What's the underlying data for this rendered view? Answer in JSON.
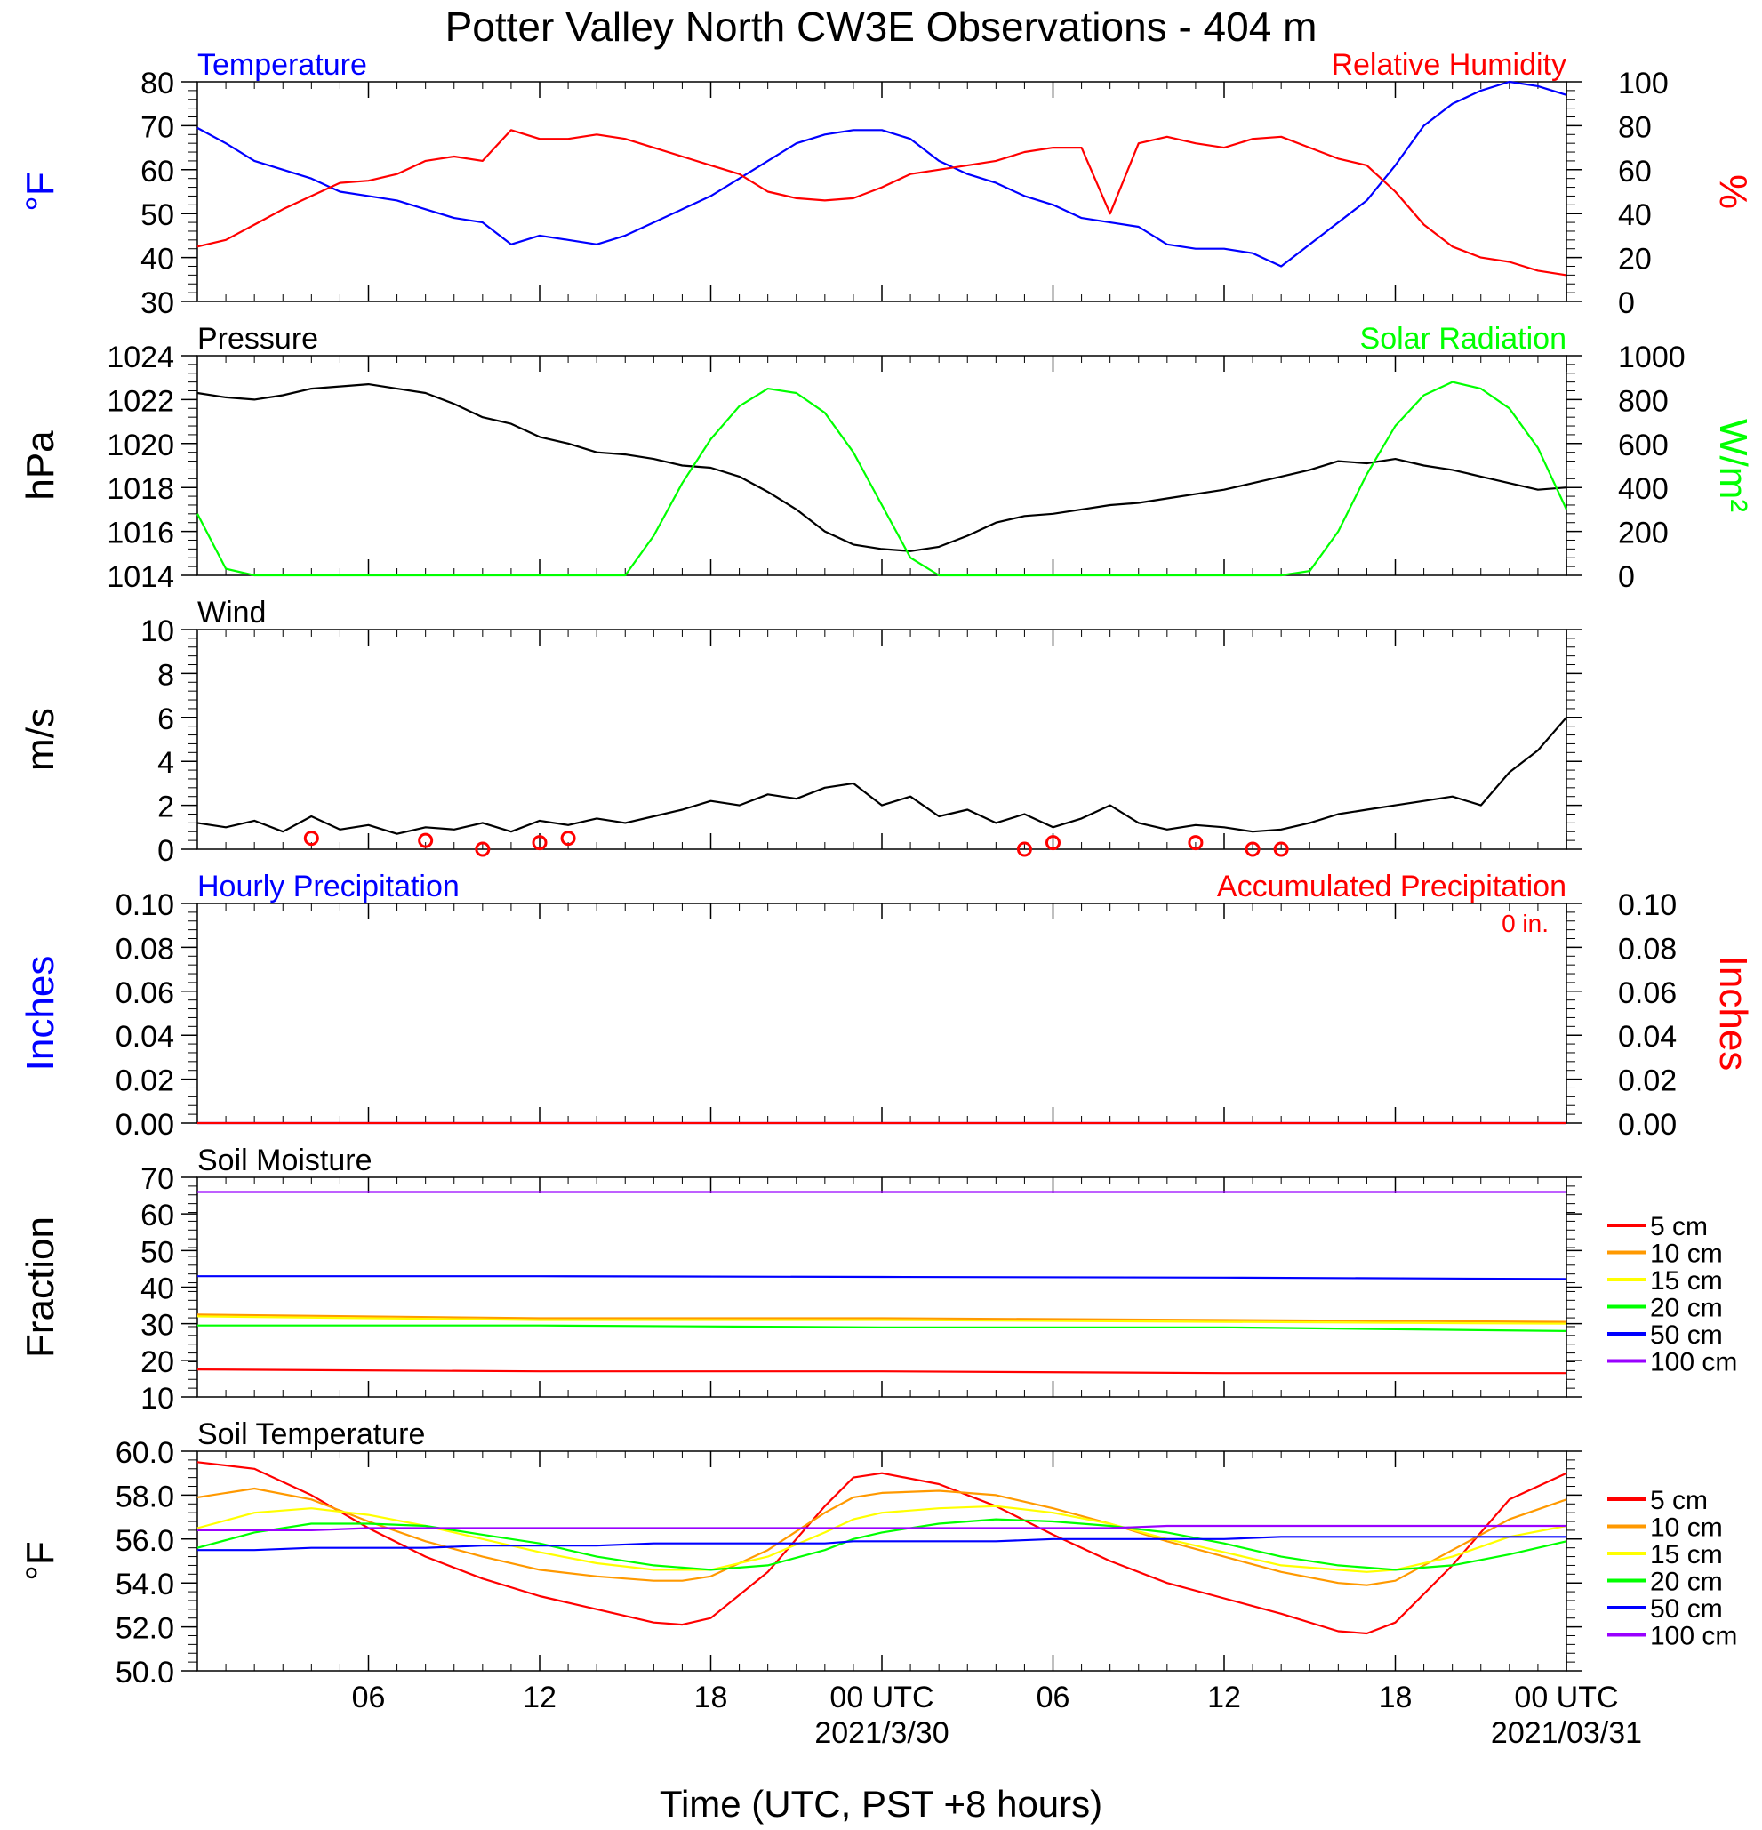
{
  "title": "Potter Valley North CW3E Observations - 404 m",
  "xlabel": "Time (UTC, PST +8 hours)",
  "x_ticks": [
    "06",
    "12",
    "18",
    "00 UTC",
    "06",
    "12",
    "18",
    "00 UTC"
  ],
  "x_dates": [
    "2021/3/30",
    "2021/03/31"
  ],
  "colors": {
    "blue": "#0000ff",
    "red": "#ff0000",
    "green": "#00ff00",
    "orange": "#ff9900",
    "yellow": "#ffff00",
    "purple": "#9900ff",
    "black": "#000000"
  },
  "chart_data": [
    {
      "type": "line",
      "panel": "temperature_rh",
      "left_title": "Temperature",
      "right_title": "Relative Humidity",
      "ylabel_left": "°F",
      "ylabel_right": "%",
      "ylim_left": [
        30,
        80
      ],
      "ylim_right": [
        0,
        100
      ],
      "yticks_left": [
        "30",
        "40",
        "50",
        "60",
        "70",
        "80"
      ],
      "yticks_right": [
        "0",
        "20",
        "40",
        "60",
        "80",
        "100"
      ],
      "x_hours": [
        0,
        1,
        2,
        3,
        4,
        5,
        6,
        7,
        8,
        9,
        10,
        11,
        12,
        13,
        14,
        15,
        16,
        17,
        18,
        19,
        20,
        21,
        22,
        23,
        24,
        25,
        26,
        27,
        28,
        29,
        30,
        31,
        32,
        33,
        34,
        35,
        36,
        37,
        38,
        39,
        40,
        41,
        42,
        43,
        44,
        45,
        46,
        47,
        48
      ],
      "series": [
        {
          "name": "Temperature",
          "axis": "left",
          "color": "blue",
          "values": [
            69.5,
            66,
            62,
            60,
            58,
            55,
            54,
            53,
            51,
            49,
            48,
            43,
            45,
            44,
            43,
            45,
            48,
            51,
            54,
            58,
            62,
            66,
            68,
            69,
            69,
            67,
            62,
            59,
            57,
            54,
            52,
            49,
            48,
            47,
            43,
            42,
            42,
            41,
            38,
            43,
            48,
            53,
            61,
            70,
            75,
            78,
            80,
            79,
            77
          ]
        },
        {
          "name": "Relative Humidity",
          "axis": "right",
          "color": "red",
          "values": [
            25,
            28,
            35,
            42,
            48,
            54,
            55,
            58,
            64,
            66,
            64,
            78,
            74,
            74,
            76,
            74,
            70,
            66,
            62,
            58,
            50,
            47,
            46,
            47,
            52,
            58,
            60,
            62,
            64,
            68,
            70,
            70,
            40,
            72,
            75,
            72,
            70,
            74,
            75,
            70,
            65,
            62,
            50,
            35,
            25,
            20,
            18,
            14,
            12
          ]
        }
      ]
    },
    {
      "type": "line",
      "panel": "pressure_solar",
      "left_title": "Pressure",
      "right_title": "Solar Radiation",
      "ylabel_left": "hPa",
      "ylabel_right": "W/m²",
      "ylim_left": [
        1014,
        1024
      ],
      "ylim_right": [
        0,
        1000
      ],
      "yticks_left": [
        "1014",
        "1016",
        "1018",
        "1020",
        "1022",
        "1024"
      ],
      "yticks_right": [
        "0",
        "200",
        "400",
        "600",
        "800",
        "1000"
      ],
      "x_hours": [
        0,
        1,
        2,
        3,
        4,
        5,
        6,
        7,
        8,
        9,
        10,
        11,
        12,
        13,
        14,
        15,
        16,
        17,
        18,
        19,
        20,
        21,
        22,
        23,
        24,
        25,
        26,
        27,
        28,
        29,
        30,
        31,
        32,
        33,
        34,
        35,
        36,
        37,
        38,
        39,
        40,
        41,
        42,
        43,
        44,
        45,
        46,
        47,
        48
      ],
      "series": [
        {
          "name": "Pressure",
          "axis": "left",
          "color": "black",
          "values": [
            1022.3,
            1022.1,
            1022.0,
            1022.2,
            1022.5,
            1022.6,
            1022.7,
            1022.5,
            1022.3,
            1021.8,
            1021.2,
            1020.9,
            1020.3,
            1020.0,
            1019.6,
            1019.5,
            1019.3,
            1019.0,
            1018.9,
            1018.5,
            1017.8,
            1017.0,
            1016.0,
            1015.4,
            1015.2,
            1015.1,
            1015.3,
            1015.8,
            1016.4,
            1016.7,
            1016.8,
            1017.0,
            1017.2,
            1017.3,
            1017.5,
            1017.7,
            1017.9,
            1018.2,
            1018.5,
            1018.8,
            1019.2,
            1019.1,
            1019.3,
            1019.0,
            1018.8,
            1018.5,
            1018.2,
            1017.9,
            1018.0
          ]
        },
        {
          "name": "Solar Radiation",
          "axis": "right",
          "color": "green",
          "values": [
            280,
            30,
            0,
            0,
            0,
            0,
            0,
            0,
            0,
            0,
            0,
            0,
            0,
            0,
            0,
            0,
            180,
            420,
            620,
            770,
            850,
            830,
            740,
            560,
            320,
            80,
            0,
            0,
            0,
            0,
            0,
            0,
            0,
            0,
            0,
            0,
            0,
            0,
            0,
            20,
            200,
            460,
            680,
            820,
            880,
            850,
            760,
            580,
            300
          ]
        }
      ]
    },
    {
      "type": "line",
      "panel": "wind",
      "left_title": "Wind",
      "ylabel_left": "m/s",
      "ylim_left": [
        0,
        10
      ],
      "yticks_left": [
        "0",
        "2",
        "4",
        "6",
        "8",
        "10"
      ],
      "x_hours": [
        0,
        1,
        2,
        3,
        4,
        5,
        6,
        7,
        8,
        9,
        10,
        11,
        12,
        13,
        14,
        15,
        16,
        17,
        18,
        19,
        20,
        21,
        22,
        23,
        24,
        25,
        26,
        27,
        28,
        29,
        30,
        31,
        32,
        33,
        34,
        35,
        36,
        37,
        38,
        39,
        40,
        41,
        42,
        43,
        44,
        45,
        46,
        47,
        48
      ],
      "series": [
        {
          "name": "Wind",
          "color": "black",
          "values": [
            1.2,
            1.0,
            1.3,
            0.8,
            1.5,
            0.9,
            1.1,
            0.7,
            1.0,
            0.9,
            1.2,
            0.8,
            1.3,
            1.1,
            1.4,
            1.2,
            1.5,
            1.8,
            2.2,
            2.0,
            2.5,
            2.3,
            2.8,
            3.0,
            2.0,
            2.4,
            1.5,
            1.8,
            1.2,
            1.6,
            1.0,
            1.4,
            2.0,
            1.2,
            0.9,
            1.1,
            1.0,
            0.8,
            0.9,
            1.2,
            1.6,
            1.8,
            2.0,
            2.2,
            2.4,
            2.0,
            3.5,
            4.5,
            6.0
          ]
        },
        {
          "name": "Calm",
          "color": "red",
          "marker": "circle",
          "points": [
            [
              4,
              0.5
            ],
            [
              8,
              0.4
            ],
            [
              10,
              0.0
            ],
            [
              12,
              0.3
            ],
            [
              13,
              0.5
            ],
            [
              29,
              0.0
            ],
            [
              30,
              0.3
            ],
            [
              35,
              0.3
            ],
            [
              37,
              0.0
            ],
            [
              38,
              0.0
            ]
          ]
        }
      ]
    },
    {
      "type": "line",
      "panel": "precipitation",
      "left_title": "Hourly Precipitation",
      "right_title": "Accumulated Precipitation",
      "annotation": "0 in.",
      "ylabel_left": "Inches",
      "ylabel_right": "Inches",
      "ylim_left": [
        0,
        0.1
      ],
      "ylim_right": [
        0,
        0.1
      ],
      "yticks_left": [
        "0.00",
        "0.02",
        "0.04",
        "0.06",
        "0.08",
        "0.10"
      ],
      "yticks_right": [
        "0.00",
        "0.02",
        "0.04",
        "0.06",
        "0.08",
        "0.10"
      ],
      "x_hours": [
        0,
        48
      ],
      "series": [
        {
          "name": "Hourly Precipitation",
          "axis": "left",
          "color": "blue",
          "values": [
            0,
            0
          ]
        },
        {
          "name": "Accumulated Precipitation",
          "axis": "right",
          "color": "red",
          "values": [
            0,
            0
          ]
        }
      ]
    },
    {
      "type": "line",
      "panel": "soil_moisture",
      "left_title": "Soil Moisture",
      "ylabel_left": "Fraction",
      "ylim_left": [
        10,
        70
      ],
      "yticks_left": [
        "10",
        "20",
        "30",
        "40",
        "50",
        "60",
        "70"
      ],
      "x_hours": [
        0,
        12,
        24,
        36,
        48
      ],
      "series": [
        {
          "name": "5 cm",
          "color": "red",
          "values": [
            17.5,
            17.0,
            17.0,
            16.5,
            16.5
          ]
        },
        {
          "name": "10 cm",
          "color": "orange",
          "values": [
            32.5,
            31.5,
            31.5,
            31.0,
            30.5
          ]
        },
        {
          "name": "15 cm",
          "color": "yellow",
          "values": [
            32.0,
            31.0,
            31.0,
            30.5,
            30.0
          ]
        },
        {
          "name": "20 cm",
          "color": "green",
          "values": [
            29.5,
            29.5,
            29.0,
            29.0,
            28.0
          ]
        },
        {
          "name": "50 cm",
          "color": "blue",
          "values": [
            43.0,
            43.0,
            42.8,
            42.6,
            42.2
          ]
        },
        {
          "name": "100 cm",
          "color": "purple",
          "values": [
            66.0,
            66.0,
            66.0,
            66.0,
            66.0
          ]
        }
      ]
    },
    {
      "type": "line",
      "panel": "soil_temperature",
      "left_title": "Soil Temperature",
      "ylabel_left": "°F",
      "ylim_left": [
        50,
        60
      ],
      "yticks_left": [
        "50.0",
        "52.0",
        "54.0",
        "56.0",
        "58.0",
        "60.0"
      ],
      "x_hours": [
        0,
        2,
        4,
        6,
        8,
        10,
        12,
        14,
        16,
        17,
        18,
        20,
        22,
        23,
        24,
        26,
        28,
        30,
        32,
        34,
        36,
        38,
        40,
        41,
        42,
        44,
        46,
        48
      ],
      "series": [
        {
          "name": "5 cm",
          "color": "red",
          "values": [
            59.5,
            59.2,
            58.0,
            56.5,
            55.2,
            54.2,
            53.4,
            52.8,
            52.2,
            52.1,
            52.4,
            54.5,
            57.5,
            58.8,
            59.0,
            58.5,
            57.5,
            56.2,
            55.0,
            54.0,
            53.3,
            52.6,
            51.8,
            51.7,
            52.2,
            54.8,
            57.8,
            59.0
          ]
        },
        {
          "name": "10 cm",
          "color": "orange",
          "values": [
            57.9,
            58.3,
            57.8,
            56.8,
            55.9,
            55.2,
            54.6,
            54.3,
            54.1,
            54.1,
            54.3,
            55.5,
            57.2,
            57.9,
            58.1,
            58.2,
            58.0,
            57.4,
            56.7,
            55.9,
            55.2,
            54.5,
            54.0,
            53.9,
            54.1,
            55.5,
            56.9,
            57.8
          ]
        },
        {
          "name": "15 cm",
          "color": "yellow",
          "values": [
            56.5,
            57.2,
            57.4,
            57.1,
            56.6,
            56.0,
            55.4,
            54.9,
            54.6,
            54.6,
            54.6,
            55.2,
            56.3,
            56.9,
            57.2,
            57.4,
            57.5,
            57.2,
            56.7,
            56.0,
            55.4,
            54.8,
            54.6,
            54.5,
            54.6,
            55.2,
            56.1,
            56.6
          ]
        },
        {
          "name": "20 cm",
          "color": "green",
          "values": [
            55.6,
            56.3,
            56.7,
            56.7,
            56.6,
            56.2,
            55.8,
            55.2,
            54.8,
            54.7,
            54.6,
            54.8,
            55.5,
            56.0,
            56.3,
            56.7,
            56.9,
            56.8,
            56.6,
            56.3,
            55.8,
            55.2,
            54.8,
            54.7,
            54.6,
            54.8,
            55.3,
            55.9
          ]
        },
        {
          "name": "50 cm",
          "color": "blue",
          "values": [
            55.5,
            55.5,
            55.6,
            55.6,
            55.6,
            55.7,
            55.7,
            55.7,
            55.8,
            55.8,
            55.8,
            55.8,
            55.8,
            55.9,
            55.9,
            55.9,
            55.9,
            56.0,
            56.0,
            56.0,
            56.0,
            56.1,
            56.1,
            56.1,
            56.1,
            56.1,
            56.1,
            56.1
          ]
        },
        {
          "name": "100 cm",
          "color": "purple",
          "values": [
            56.4,
            56.4,
            56.4,
            56.5,
            56.5,
            56.5,
            56.5,
            56.5,
            56.5,
            56.5,
            56.5,
            56.5,
            56.5,
            56.5,
            56.5,
            56.5,
            56.5,
            56.5,
            56.5,
            56.6,
            56.6,
            56.6,
            56.6,
            56.6,
            56.6,
            56.6,
            56.6,
            56.6
          ]
        }
      ]
    }
  ],
  "soil_legend": [
    "5 cm",
    "10 cm",
    "15 cm",
    "20 cm",
    "50 cm",
    "100 cm"
  ],
  "soil_legend_colors": [
    "red",
    "orange",
    "yellow",
    "green",
    "blue",
    "purple"
  ]
}
